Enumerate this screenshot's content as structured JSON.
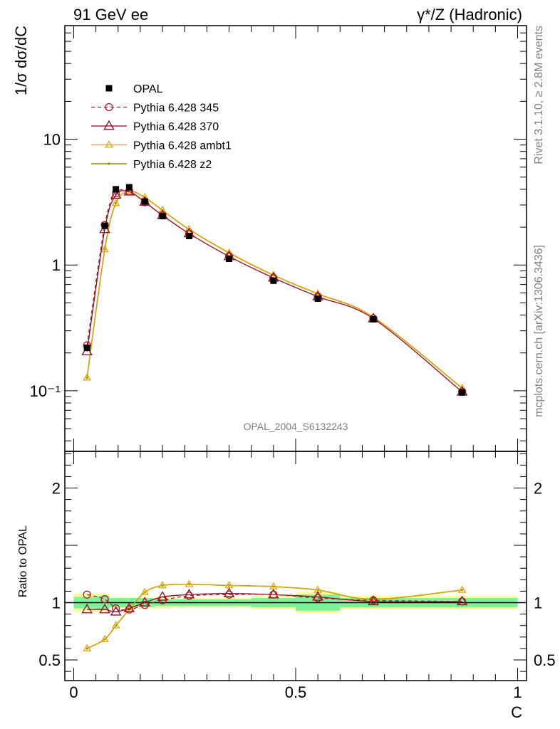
{
  "header": {
    "left": "91 GeV ee",
    "right": "γ*/Z (Hadronic)"
  },
  "side_text": {
    "rivet": "Rivet 3.1.10, ≥ 2.8M events",
    "mcplots": "mcplots.cern.ch [arXiv:1306.3436]"
  },
  "watermark": "OPAL_2004_S6132243",
  "chart_data": [
    {
      "type": "line",
      "panel": "main",
      "ylabel": "1/σ dσ/dC",
      "yscale": "log",
      "ylim": [
        0.033,
        80
      ],
      "xlim": [
        -0.02,
        1.02
      ],
      "ytick_labels": [
        "10⁻¹",
        "1",
        "10"
      ],
      "yticks": [
        0.1,
        1,
        10
      ],
      "legend_position": "top-left",
      "series": [
        {
          "name": "OPAL",
          "style": "data",
          "x": [
            0.03,
            0.07,
            0.095,
            0.125,
            0.16,
            0.2,
            0.26,
            0.35,
            0.45,
            0.55,
            0.675,
            0.875
          ],
          "y": [
            0.22,
            2.05,
            4.0,
            4.15,
            3.2,
            2.45,
            1.7,
            1.12,
            0.75,
            0.54,
            0.37,
            0.097
          ]
        },
        {
          "name": "Pythia 6.428 345",
          "style": "mc345",
          "color": "#b2182b",
          "x": [
            0.03,
            0.07,
            0.095,
            0.125,
            0.16,
            0.2,
            0.26,
            0.35,
            0.45,
            0.55,
            0.675,
            0.875
          ],
          "y": [
            0.23,
            2.08,
            3.72,
            3.85,
            3.15,
            2.48,
            1.78,
            1.17,
            0.79,
            0.56,
            0.375,
            0.098
          ]
        },
        {
          "name": "Pythia 6.428 370",
          "style": "mc370",
          "color": "#8b0a2a",
          "x": [
            0.03,
            0.07,
            0.095,
            0.125,
            0.16,
            0.2,
            0.26,
            0.35,
            0.45,
            0.55,
            0.675,
            0.875
          ],
          "y": [
            0.205,
            1.92,
            3.6,
            3.82,
            3.17,
            2.48,
            1.78,
            1.17,
            0.79,
            0.56,
            0.375,
            0.098
          ]
        },
        {
          "name": "Pythia 6.428 ambt1",
          "style": "ambt1",
          "color": "#e3a600",
          "x": [
            0.03,
            0.07,
            0.095,
            0.125,
            0.16,
            0.2,
            0.26,
            0.35,
            0.45,
            0.55,
            0.675,
            0.875
          ],
          "y": [
            0.127,
            1.33,
            3.1,
            3.85,
            3.45,
            2.72,
            1.92,
            1.25,
            0.83,
            0.59,
            0.385,
            0.105
          ]
        },
        {
          "name": "Pythia 6.428 z2",
          "style": "z2",
          "color": "#8a8a00",
          "x": [
            0.03,
            0.07,
            0.095,
            0.125,
            0.16,
            0.2,
            0.26,
            0.35,
            0.45,
            0.55,
            0.675,
            0.875
          ],
          "y": [
            0.127,
            1.33,
            3.1,
            3.85,
            3.45,
            2.72,
            1.92,
            1.25,
            0.83,
            0.59,
            0.385,
            0.105
          ]
        }
      ]
    },
    {
      "type": "line",
      "panel": "ratio",
      "ylabel": "Ratio to OPAL",
      "xlabel": "C",
      "ylim": [
        0.32,
        2.32
      ],
      "xlim": [
        -0.02,
        1.02
      ],
      "xticks": [
        0,
        0.5,
        1
      ],
      "xtick_labels": [
        "0",
        "0.5",
        "1"
      ],
      "yticks": [
        0.5,
        1,
        2
      ],
      "ytick_labels": [
        "0.5",
        "1",
        "2"
      ],
      "bands": {
        "edges": [
          0,
          0.05,
          0.08,
          0.18,
          0.22,
          0.4,
          0.5,
          0.6,
          0.75,
          1.0
        ],
        "inner": [
          0.05,
          0.06,
          0.04,
          0.03,
          0.03,
          0.04,
          0.07,
          0.04,
          0.04
        ],
        "outer": [
          0.08,
          0.08,
          0.05,
          0.05,
          0.04,
          0.06,
          0.09,
          0.06,
          0.06
        ]
      },
      "series": [
        {
          "name": "Pythia 6.428 345",
          "style": "mc345",
          "x": [
            0.03,
            0.07,
            0.095,
            0.125,
            0.16,
            0.2,
            0.26,
            0.35,
            0.45,
            0.55,
            0.675,
            0.875
          ],
          "y": [
            1.07,
            1.03,
            0.95,
            0.94,
            0.98,
            1.02,
            1.06,
            1.07,
            1.07,
            1.04,
            1.02,
            1.01
          ]
        },
        {
          "name": "Pythia 6.428 370",
          "style": "mc370",
          "x": [
            0.03,
            0.07,
            0.095,
            0.125,
            0.16,
            0.2,
            0.26,
            0.35,
            0.45,
            0.55,
            0.675,
            0.875
          ],
          "y": [
            0.94,
            0.94,
            0.92,
            0.95,
            1.0,
            1.05,
            1.07,
            1.08,
            1.07,
            1.05,
            1.01,
            1.01
          ]
        },
        {
          "name": "Pythia 6.428 ambt1",
          "style": "ambt1",
          "x": [
            0.03,
            0.07,
            0.095,
            0.125,
            0.16,
            0.2,
            0.26,
            0.35,
            0.45,
            0.55,
            0.675,
            0.875
          ],
          "y": [
            0.6,
            0.68,
            0.8,
            0.94,
            1.09,
            1.15,
            1.16,
            1.15,
            1.14,
            1.11,
            1.03,
            1.11
          ]
        },
        {
          "name": "Pythia 6.428 z2",
          "style": "z2",
          "x": [
            0.03,
            0.07,
            0.095,
            0.125,
            0.16,
            0.2,
            0.26,
            0.35,
            0.45,
            0.55,
            0.675,
            0.875
          ],
          "y": [
            0.6,
            0.68,
            0.8,
            0.94,
            1.09,
            1.15,
            1.16,
            1.15,
            1.14,
            1.11,
            1.03,
            1.11
          ]
        }
      ]
    }
  ]
}
